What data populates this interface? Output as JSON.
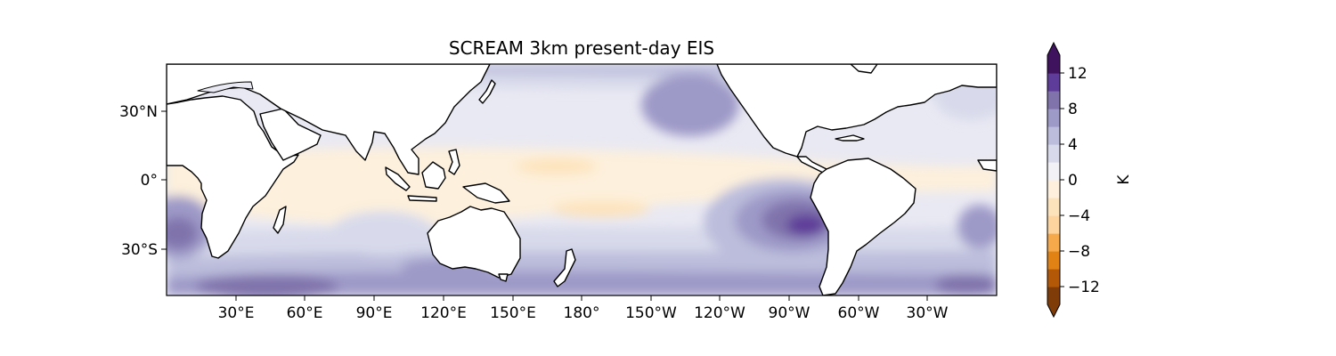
{
  "title": "SCREAM 3km present-day EIS",
  "map": {
    "lon_ticks": [
      "30°E",
      "60°E",
      "90°E",
      "120°E",
      "150°E",
      "180°",
      "150°W",
      "120°W",
      "90°W",
      "60°W",
      "30°W"
    ],
    "lat_ticks": [
      "30°N",
      "0°",
      "30°S"
    ]
  },
  "colorbar": {
    "label": "K",
    "tick_labels": [
      "12",
      "8",
      "4",
      "0",
      "−4",
      "−8",
      "−12"
    ],
    "levels": [
      -14,
      -12,
      -10,
      -8,
      -6,
      -4,
      -2,
      0,
      2,
      4,
      6,
      8,
      10,
      12,
      14
    ],
    "colors": [
      "#7f3b08",
      "#b35806",
      "#e08214",
      "#f5a94b",
      "#fdd49e",
      "#fde3bc",
      "#fef0dc",
      "#f2f1f6",
      "#d8daeb",
      "#bcbddc",
      "#9e9ac8",
      "#8073ac",
      "#5e3c99",
      "#40135f"
    ]
  },
  "colors": {
    "land": "#ffffff",
    "coast": "#000000"
  }
}
